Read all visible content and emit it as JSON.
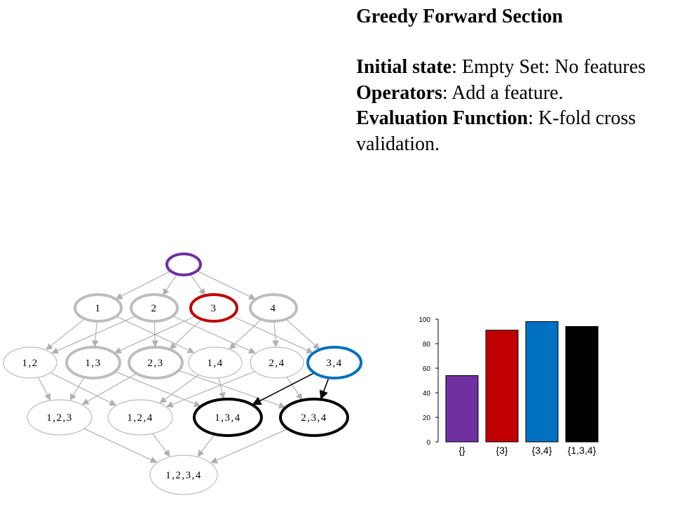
{
  "text": {
    "title": "Greedy Forward Section",
    "items": [
      {
        "label": "Initial state",
        "text": ": Empty Set: No features"
      },
      {
        "label": "Operators",
        "text": ": Add a feature."
      },
      {
        "label": "Evaluation Function",
        "text": ": K-fold cross validation."
      }
    ]
  },
  "lattice": {
    "nodes": [
      {
        "id": "empty",
        "label": "",
        "highlight": "purple"
      },
      {
        "id": "1",
        "label": "1",
        "highlight": "gray"
      },
      {
        "id": "2",
        "label": "2",
        "highlight": "gray"
      },
      {
        "id": "3",
        "label": "3",
        "highlight": "red"
      },
      {
        "id": "4",
        "label": "4",
        "highlight": "gray"
      },
      {
        "id": "12",
        "label": "1,2",
        "highlight": "none"
      },
      {
        "id": "13",
        "label": "1,3",
        "highlight": "gray"
      },
      {
        "id": "23",
        "label": "2,3",
        "highlight": "gray"
      },
      {
        "id": "14",
        "label": "1,4",
        "highlight": "none"
      },
      {
        "id": "24",
        "label": "2,4",
        "highlight": "none"
      },
      {
        "id": "34",
        "label": "3,4",
        "highlight": "blue"
      },
      {
        "id": "123",
        "label": "1,2,3",
        "highlight": "none"
      },
      {
        "id": "124",
        "label": "1,2,4",
        "highlight": "none"
      },
      {
        "id": "134",
        "label": "1,3,4",
        "highlight": "black"
      },
      {
        "id": "234",
        "label": "2,3,4",
        "highlight": "black"
      },
      {
        "id": "1234",
        "label": "1,2,3,4",
        "highlight": "none"
      }
    ]
  },
  "chart_data": {
    "type": "bar",
    "categories": [
      "{}",
      "{3}",
      "{3,4}",
      "{1,3,4}"
    ],
    "values": [
      54,
      91,
      98,
      94
    ],
    "colors": [
      "#7030a0",
      "#c00000",
      "#0070c0",
      "#000000"
    ],
    "yticks": [
      0,
      20,
      40,
      60,
      80,
      100
    ],
    "ylim": [
      0,
      100
    ],
    "title": "",
    "xlabel": "",
    "ylabel": ""
  }
}
